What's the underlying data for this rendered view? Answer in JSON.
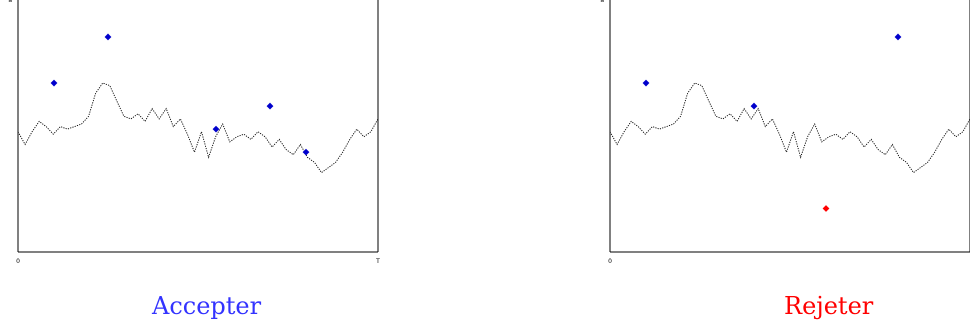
{
  "colors": {
    "accept": "#3333ff",
    "reject": "#ff0000",
    "point": "#0000cc",
    "path": "#000000"
  },
  "chart_data": [
    {
      "type": "line",
      "caption": "Accepter",
      "x_ticks": [
        "0",
        "T"
      ],
      "y_tick": "a",
      "xlim": [
        0,
        1
      ],
      "ylim": [
        0,
        1
      ],
      "path": [
        0.47,
        0.42,
        0.47,
        0.51,
        0.49,
        0.46,
        0.49,
        0.48,
        0.49,
        0.5,
        0.53,
        0.62,
        0.66,
        0.65,
        0.59,
        0.53,
        0.52,
        0.54,
        0.51,
        0.56,
        0.52,
        0.56,
        0.49,
        0.52,
        0.46,
        0.39,
        0.47,
        0.37,
        0.45,
        0.5,
        0.43,
        0.45,
        0.46,
        0.44,
        0.47,
        0.45,
        0.41,
        0.44,
        0.4,
        0.38,
        0.42,
        0.37,
        0.35,
        0.31,
        0.33,
        0.35,
        0.39,
        0.44,
        0.48,
        0.45,
        0.47,
        0.52
      ],
      "points": [
        {
          "x": 0.1,
          "y": 0.66
        },
        {
          "x": 0.25,
          "y": 0.84
        },
        {
          "x": 0.55,
          "y": 0.48
        },
        {
          "x": 0.7,
          "y": 0.57
        },
        {
          "x": 0.8,
          "y": 0.39
        }
      ],
      "rejected": []
    },
    {
      "type": "line",
      "caption": "Rejeter",
      "x_ticks": [
        "0",
        ""
      ],
      "y_tick": "a",
      "xlim": [
        0,
        1
      ],
      "ylim": [
        0,
        1
      ],
      "path": [
        0.47,
        0.42,
        0.47,
        0.51,
        0.49,
        0.46,
        0.49,
        0.48,
        0.49,
        0.5,
        0.53,
        0.62,
        0.66,
        0.65,
        0.59,
        0.53,
        0.52,
        0.54,
        0.51,
        0.56,
        0.52,
        0.56,
        0.49,
        0.52,
        0.46,
        0.39,
        0.47,
        0.37,
        0.45,
        0.5,
        0.43,
        0.45,
        0.46,
        0.44,
        0.47,
        0.45,
        0.41,
        0.44,
        0.4,
        0.38,
        0.42,
        0.37,
        0.35,
        0.31,
        0.33,
        0.35,
        0.39,
        0.44,
        0.48,
        0.45,
        0.47,
        0.52
      ],
      "points": [
        {
          "x": 0.1,
          "y": 0.66
        },
        {
          "x": 0.4,
          "y": 0.57
        },
        {
          "x": 0.8,
          "y": 0.84
        }
      ],
      "rejected": [
        {
          "x": 0.6,
          "y": 0.17
        }
      ]
    }
  ]
}
